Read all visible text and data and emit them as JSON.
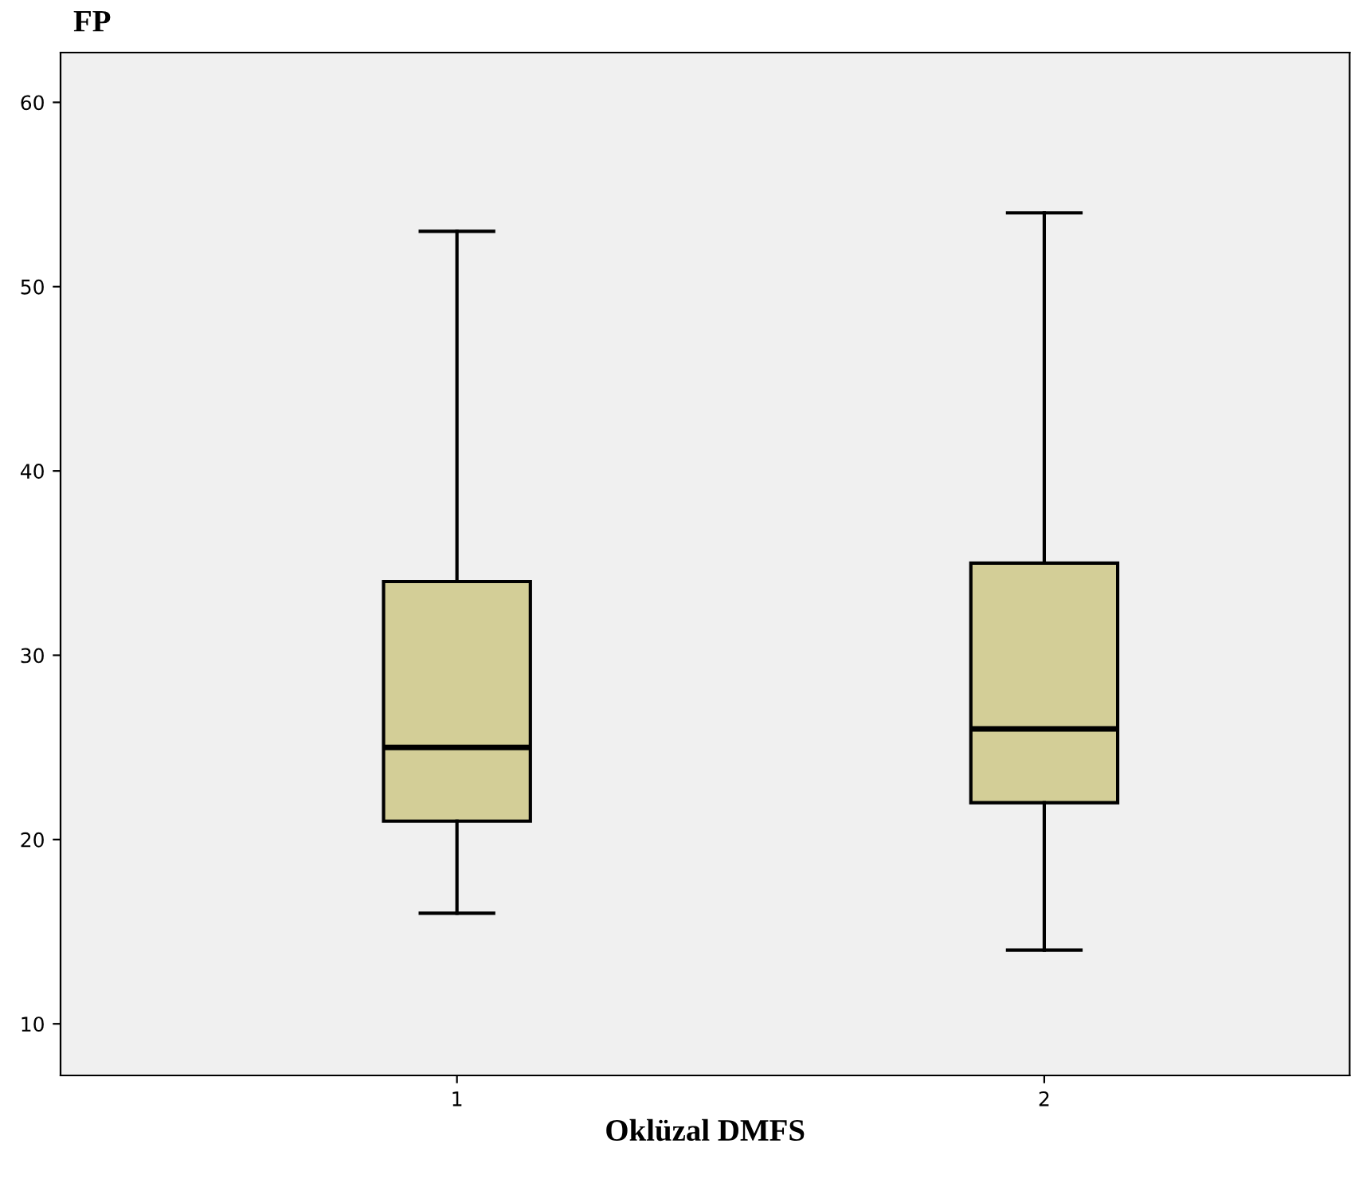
{
  "chart_data": {
    "type": "box",
    "ylabel": "FP",
    "xlabel": "Oklüzal DMFS",
    "categories": [
      "1",
      "2"
    ],
    "boxes": [
      {
        "low": 16,
        "q1": 21,
        "median": 25,
        "q3": 34,
        "high": 53
      },
      {
        "low": 14,
        "q1": 22,
        "median": 26,
        "q3": 35,
        "high": 54
      }
    ],
    "color": "#d3ce97",
    "ylim": [
      7.2,
      62.7
    ],
    "yticks": [
      10,
      20,
      30,
      40,
      50,
      60
    ],
    "grid": false
  }
}
